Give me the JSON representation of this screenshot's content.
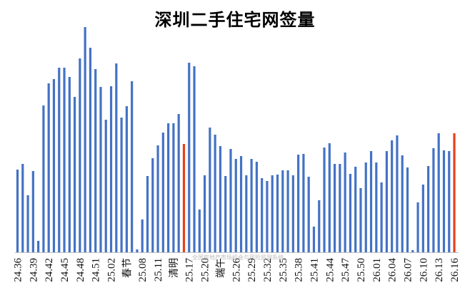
{
  "chart_data": {
    "type": "bar",
    "title": "深圳二手住宅网签量",
    "watermark": "全国房地产市场机会与风险监测系统",
    "x_tick_labels": [
      "24.36",
      "24.39",
      "24.42",
      "24.45",
      "24.48",
      "24.51",
      "25.02",
      "春节",
      "25.08",
      "25.11",
      "清明",
      "25.17",
      "25.20",
      "端午",
      "25.26",
      "25.29",
      "25.32",
      "25.35",
      "25.38",
      "25.41",
      "25.44",
      "25.47",
      "25.50",
      "26.01",
      "26.04",
      "26.07",
      "26.10",
      "26.13",
      "26.16"
    ],
    "values": [
      116,
      124,
      80,
      114,
      16,
      206,
      237,
      243,
      259,
      259,
      246,
      218,
      272,
      316,
      287,
      257,
      232,
      186,
      233,
      265,
      189,
      205,
      240,
      4,
      46,
      107,
      132,
      150,
      168,
      181,
      181,
      194,
      152,
      266,
      261,
      60,
      108,
      175,
      165,
      149,
      107,
      145,
      131,
      135,
      108,
      131,
      127,
      104,
      100,
      108,
      109,
      115,
      115,
      108,
      137,
      138,
      106,
      36,
      73,
      147,
      153,
      124,
      124,
      140,
      110,
      120,
      90,
      126,
      142,
      126,
      98,
      142,
      157,
      164,
      136,
      119,
      3,
      70,
      95,
      121,
      146,
      167,
      143,
      142,
      167
    ],
    "highlight_indices": [
      32,
      84
    ],
    "bar_color": "#4472C4",
    "highlight_color": "#E8401C",
    "ylim": [
      0,
      330
    ]
  }
}
